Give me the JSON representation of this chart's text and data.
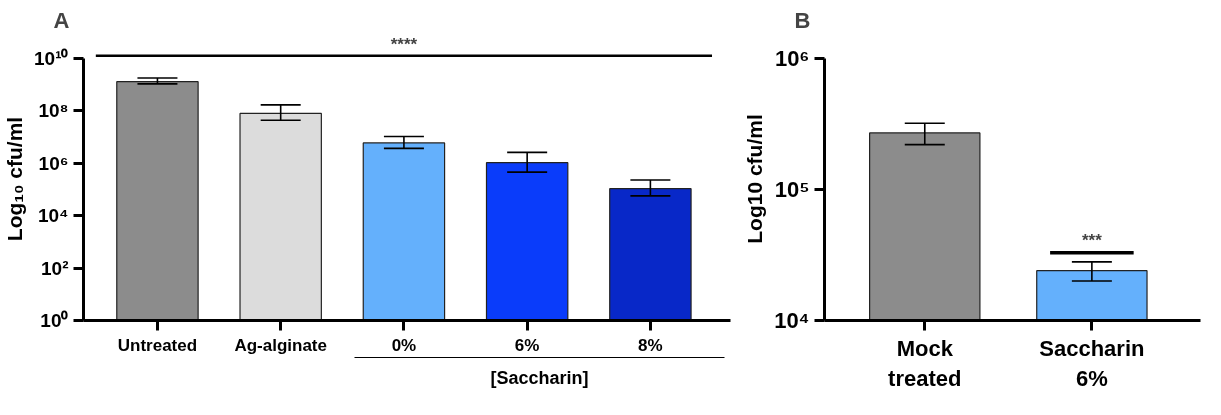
{
  "chart_data": [
    {
      "type": "bar",
      "title": "A",
      "ylabel": "Log₁₀ cfu/ml",
      "log": true,
      "grid": false,
      "categories": [
        "Untreated",
        "Ag-alginate",
        "0%",
        "6%",
        "8%"
      ],
      "values": [
        1300000000,
        80000000,
        6000000,
        1050000,
        107000
      ],
      "colors": [
        "#8c8c8c",
        "#dcdcdc",
        "#64b0fc",
        "#0a3cfa",
        "#0828c8"
      ],
      "errors": [
        [
          1070000000,
          1800000000
        ],
        [
          44000000,
          170000000
        ],
        [
          3700000,
          10500000
        ],
        [
          460000,
          2600000
        ],
        [
          57000,
          230000
        ]
      ],
      "ylim": [
        1,
        10000000000
      ],
      "yticks": [
        {
          "value": 1,
          "label": "10⁰"
        },
        {
          "value": 100,
          "label": "10²"
        },
        {
          "value": 10000,
          "label": "10⁴"
        },
        {
          "value": 1000000,
          "label": "10⁶"
        },
        {
          "value": 100000000,
          "label": "10⁸"
        },
        {
          "value": 10000000000,
          "label": "10¹⁰"
        }
      ],
      "annotations": [
        "****",
        "[Saccharin]"
      ]
    },
    {
      "type": "bar",
      "title": "B",
      "ylabel": "Log10 cfu/ml",
      "log": true,
      "grid": false,
      "categories": [
        "Mock\ntreated",
        "Saccharin\n6%"
      ],
      "values": [
        270000,
        24000
      ],
      "colors": [
        "#8c8c8c",
        "#64b0fc"
      ],
      "errors": [
        [
          220000,
          320000
        ],
        [
          20000,
          28000
        ]
      ],
      "ylim": [
        10000,
        1000000
      ],
      "yticks": [
        {
          "value": 10000,
          "label": "10⁴"
        },
        {
          "value": 100000,
          "label": "10⁵"
        },
        {
          "value": 1000000,
          "label": "10⁶"
        }
      ],
      "annotations": [
        "***"
      ]
    }
  ]
}
